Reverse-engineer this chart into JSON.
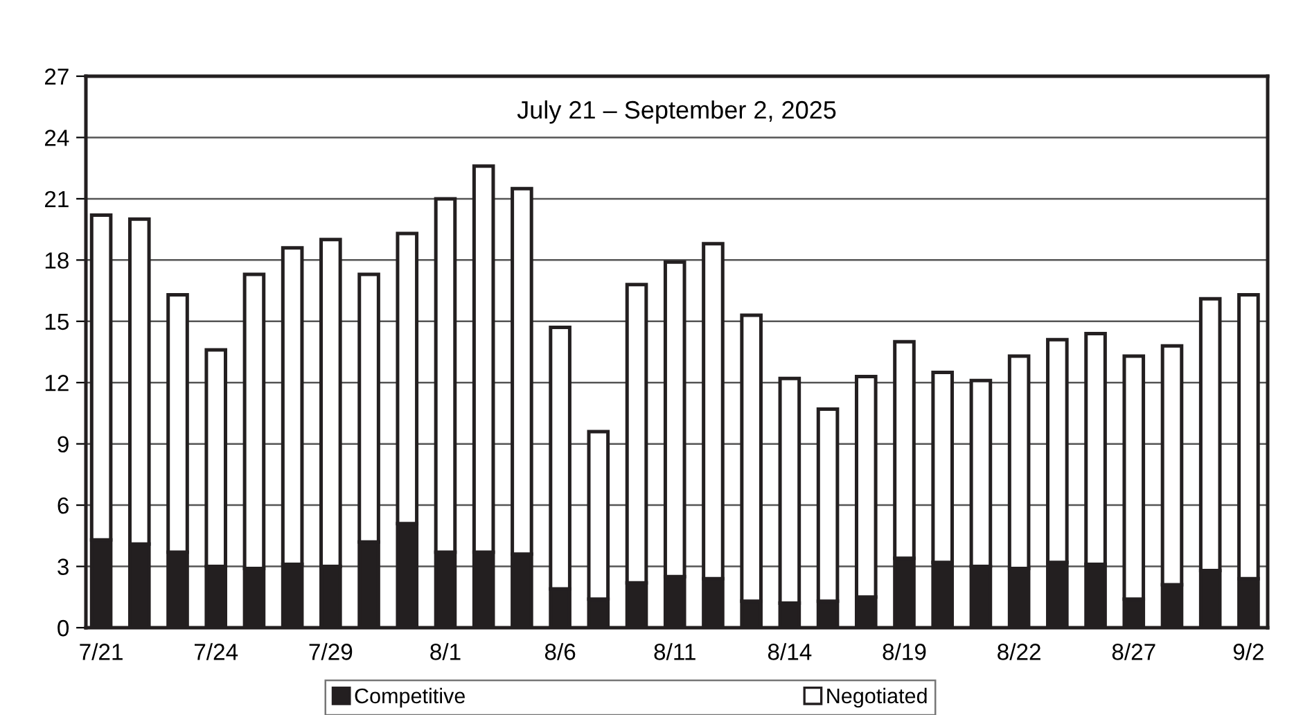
{
  "chart_data": {
    "type": "bar",
    "title": "July 21 – September 2, 2025",
    "stacked": true,
    "categories": [
      "7/21",
      null,
      null,
      "7/24",
      null,
      null,
      "7/29",
      null,
      null,
      "8/1",
      null,
      null,
      "8/6",
      null,
      null,
      "8/11",
      null,
      null,
      "8/14",
      null,
      null,
      "8/19",
      null,
      null,
      "8/22",
      null,
      null,
      "8/27",
      null,
      null,
      "9/2"
    ],
    "series": [
      {
        "name": "Competitive",
        "color": "#231f20",
        "values": [
          4.3,
          4.1,
          3.7,
          3.0,
          2.9,
          3.1,
          3.0,
          4.2,
          5.1,
          3.7,
          3.7,
          3.6,
          1.9,
          1.4,
          2.2,
          2.5,
          2.4,
          1.3,
          1.2,
          1.3,
          1.5,
          3.4,
          3.2,
          3.0,
          2.9,
          3.2,
          3.1,
          1.4,
          2.1,
          2.8,
          2.4
        ]
      },
      {
        "name": "Negotiated",
        "color": "#ffffff",
        "values": [
          15.9,
          15.9,
          12.6,
          10.6,
          14.4,
          15.5,
          16.0,
          13.1,
          14.2,
          17.3,
          18.9,
          17.9,
          12.8,
          8.2,
          14.6,
          15.4,
          16.4,
          14.0,
          11.0,
          9.4,
          10.8,
          10.6,
          9.3,
          9.1,
          10.4,
          10.9,
          11.3,
          11.9,
          11.7,
          13.3,
          13.9
        ]
      }
    ],
    "ylim": [
      0,
      27
    ],
    "yticks": [
      0,
      3,
      6,
      9,
      12,
      15,
      18,
      21,
      24,
      27
    ],
    "grid": "y",
    "legend": "bottom"
  }
}
